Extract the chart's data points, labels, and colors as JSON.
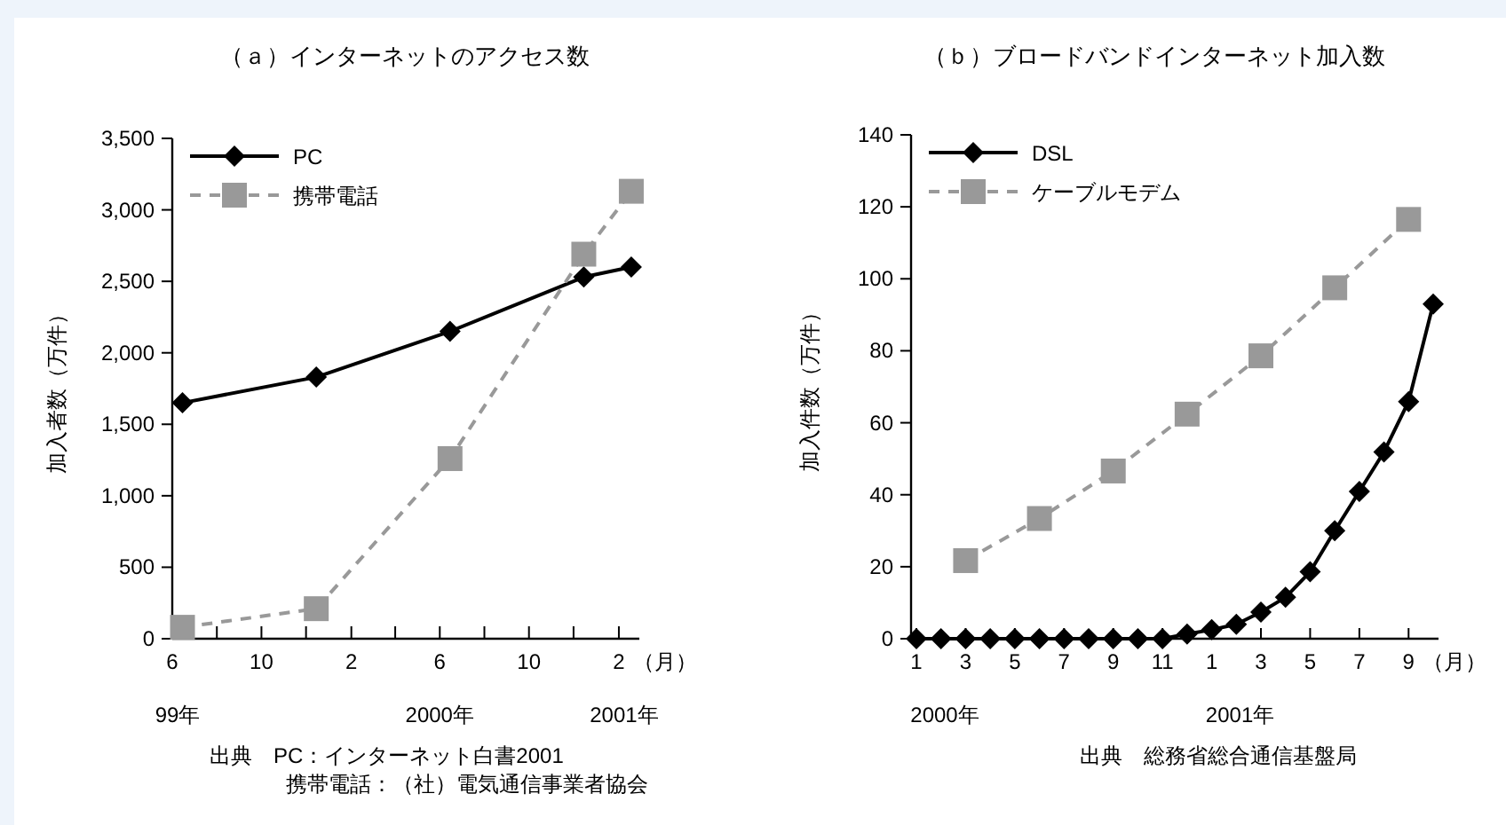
{
  "chart_data": [
    {
      "type": "line",
      "title": "（ａ）インターネットのアクセス数",
      "ylabel": "加入者数（万件）",
      "xlabel": "（月）",
      "x": [
        "1999-06-15",
        "1999-12-15",
        "2000-06-15",
        "2000-12-15",
        "2001-02-18"
      ],
      "series": [
        {
          "name": "PC",
          "color": "#000000",
          "marker": "diamond",
          "line_style": "solid",
          "values": [
            1650,
            1830,
            2150,
            2530,
            2600
          ]
        },
        {
          "name": "携帯電話",
          "color": "#999999",
          "marker": "square",
          "line_style": "dashed",
          "values": [
            80,
            210,
            1260,
            2690,
            3130
          ]
        }
      ],
      "xlim": [
        "1999-06-01",
        "2001-03-01"
      ],
      "xticks": [
        {
          "value": "1999-06",
          "label": "6"
        },
        {
          "value": "1999-08",
          "label": null
        },
        {
          "value": "1999-10",
          "label": "10"
        },
        {
          "value": "1999-12",
          "label": null
        },
        {
          "value": "2000-02",
          "label": "2"
        },
        {
          "value": "2000-04",
          "label": null
        },
        {
          "value": "2000-06",
          "label": "6"
        },
        {
          "value": "2000-08",
          "label": null
        },
        {
          "value": "2000-10",
          "label": "10"
        },
        {
          "value": "2000-12",
          "label": null
        },
        {
          "value": "2001-02",
          "label": "2"
        }
      ],
      "ylim": [
        0,
        3500
      ],
      "yticks": [
        0,
        500,
        {
          "value": 1000,
          "label": "1,000"
        },
        {
          "value": 1500,
          "label": "1,500"
        },
        {
          "value": 2000,
          "label": "2,000"
        },
        {
          "value": 2500,
          "label": "2,500"
        },
        {
          "value": 3000,
          "label": "3,000"
        },
        {
          "value": 3500,
          "label": "3,500"
        }
      ],
      "legend": "top left",
      "annotations": [
        "99年",
        "2000年",
        "2001年",
        "出典　PC：インターネット白書2001",
        "携帯電話：（社）電気通信事業者協会"
      ]
    },
    {
      "type": "line",
      "title": "（ｂ）ブロードバンドインターネット加入数",
      "ylabel": "加入件数（万件）",
      "xlabel": "（月）",
      "categories": [
        "1",
        null,
        "3",
        null,
        "5",
        null,
        "7",
        null,
        "9",
        null,
        "11",
        null,
        "1",
        null,
        "3",
        null,
        "5",
        null,
        "7",
        null,
        "9",
        null
      ],
      "series": [
        {
          "name": "DSL",
          "color": "#000000",
          "marker": "diamond",
          "line_style": "solid",
          "values": [
            0,
            0,
            0,
            0,
            0,
            0,
            0,
            0,
            0,
            0,
            0,
            1.3,
            2.5,
            4,
            7.4,
            11.5,
            18.6,
            30,
            40.9,
            51.9,
            65.9,
            93
          ]
        },
        {
          "name": "ケーブルモデム",
          "color": "#999999",
          "marker": "square",
          "line_style": "dashed",
          "values": [
            null,
            null,
            21.7,
            null,
            null,
            33.4,
            null,
            null,
            46.6,
            null,
            null,
            62.4,
            null,
            null,
            78.6,
            null,
            null,
            97.5,
            null,
            null,
            116.5,
            null
          ]
        }
      ],
      "ylim": [
        0,
        140
      ],
      "yticks": [
        0,
        20,
        40,
        60,
        80,
        100,
        120,
        140
      ],
      "legend": "top left",
      "annotations": [
        "2000年",
        "2001年",
        "出典　総務省総合通信基盤局"
      ]
    }
  ]
}
